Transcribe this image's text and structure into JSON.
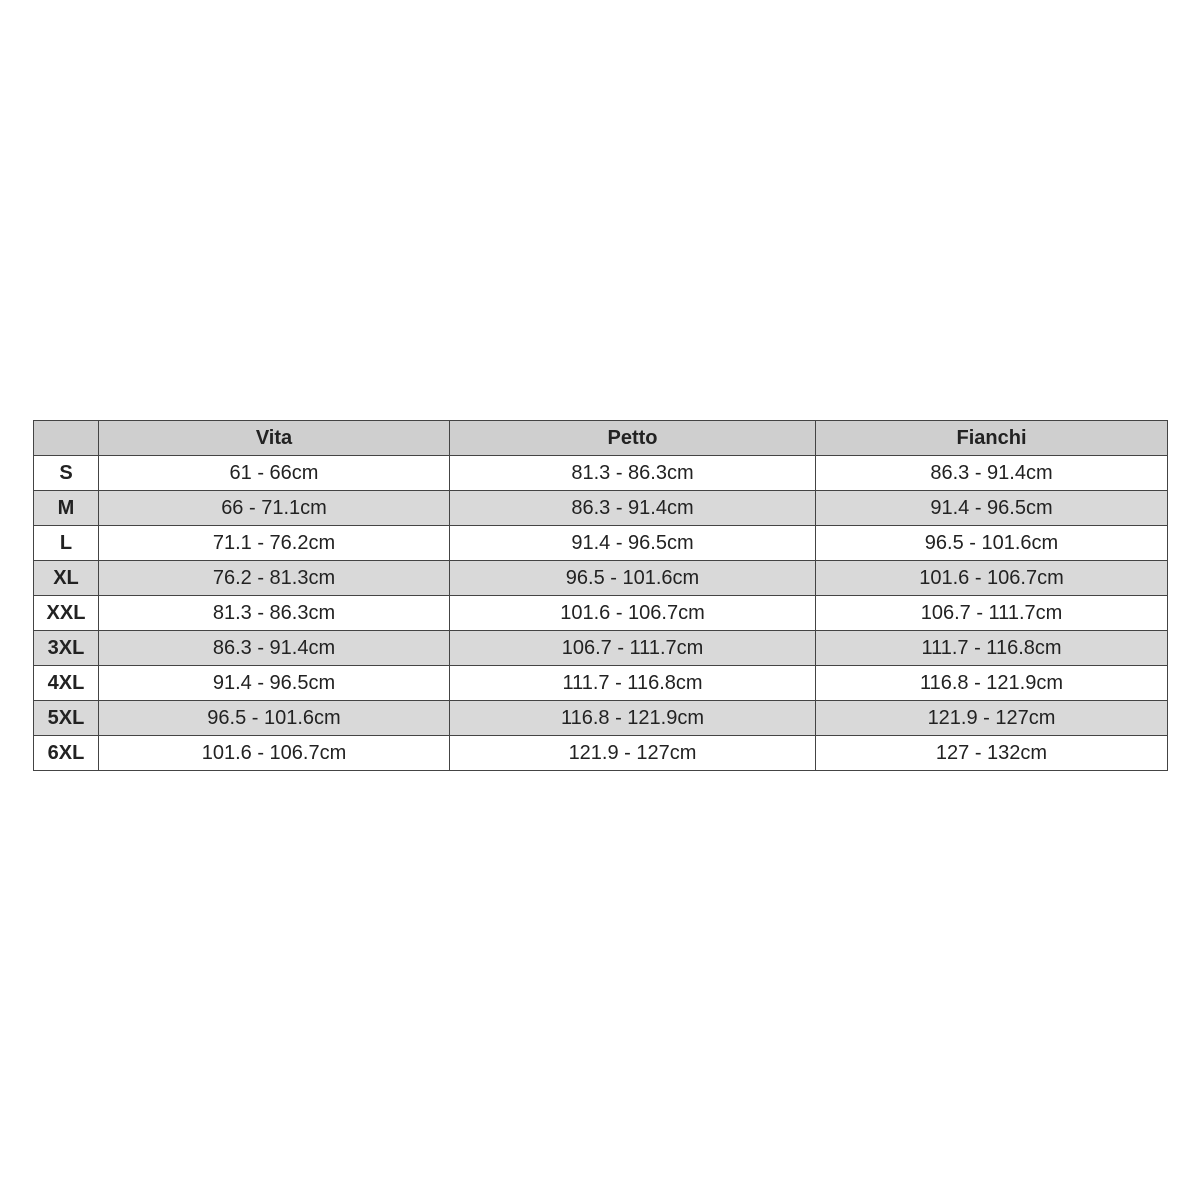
{
  "table": {
    "headers": [
      "",
      "Vita",
      "Petto",
      "Fianchi"
    ],
    "rows": [
      {
        "size": "S",
        "vita": "61 - 66cm",
        "petto": "81.3 - 86.3cm",
        "fianchi": "86.3 - 91.4cm"
      },
      {
        "size": "M",
        "vita": "66 - 71.1cm",
        "petto": "86.3 - 91.4cm",
        "fianchi": "91.4 - 96.5cm"
      },
      {
        "size": "L",
        "vita": "71.1 - 76.2cm",
        "petto": "91.4 - 96.5cm",
        "fianchi": "96.5 - 101.6cm"
      },
      {
        "size": "XL",
        "vita": "76.2 - 81.3cm",
        "petto": "96.5 - 101.6cm",
        "fianchi": "101.6 - 106.7cm"
      },
      {
        "size": "XXL",
        "vita": "81.3 - 86.3cm",
        "petto": "101.6 - 106.7cm",
        "fianchi": "106.7 - 111.7cm"
      },
      {
        "size": "3XL",
        "vita": "86.3 - 91.4cm",
        "petto": "106.7 - 111.7cm",
        "fianchi": "111.7 - 116.8cm"
      },
      {
        "size": "4XL",
        "vita": "91.4 - 96.5cm",
        "petto": "111.7 - 116.8cm",
        "fianchi": "116.8 - 121.9cm"
      },
      {
        "size": "5XL",
        "vita": "96.5 - 101.6cm",
        "petto": "116.8 - 121.9cm",
        "fianchi": "121.9 - 127cm"
      },
      {
        "size": "6XL",
        "vita": "101.6 - 106.7cm",
        "petto": "121.9 - 127cm",
        "fianchi": "127 - 132cm"
      }
    ]
  },
  "colors": {
    "header_bg": "#cfcfcf",
    "alt_row_bg": "#d9d9d9",
    "border": "#444444"
  }
}
